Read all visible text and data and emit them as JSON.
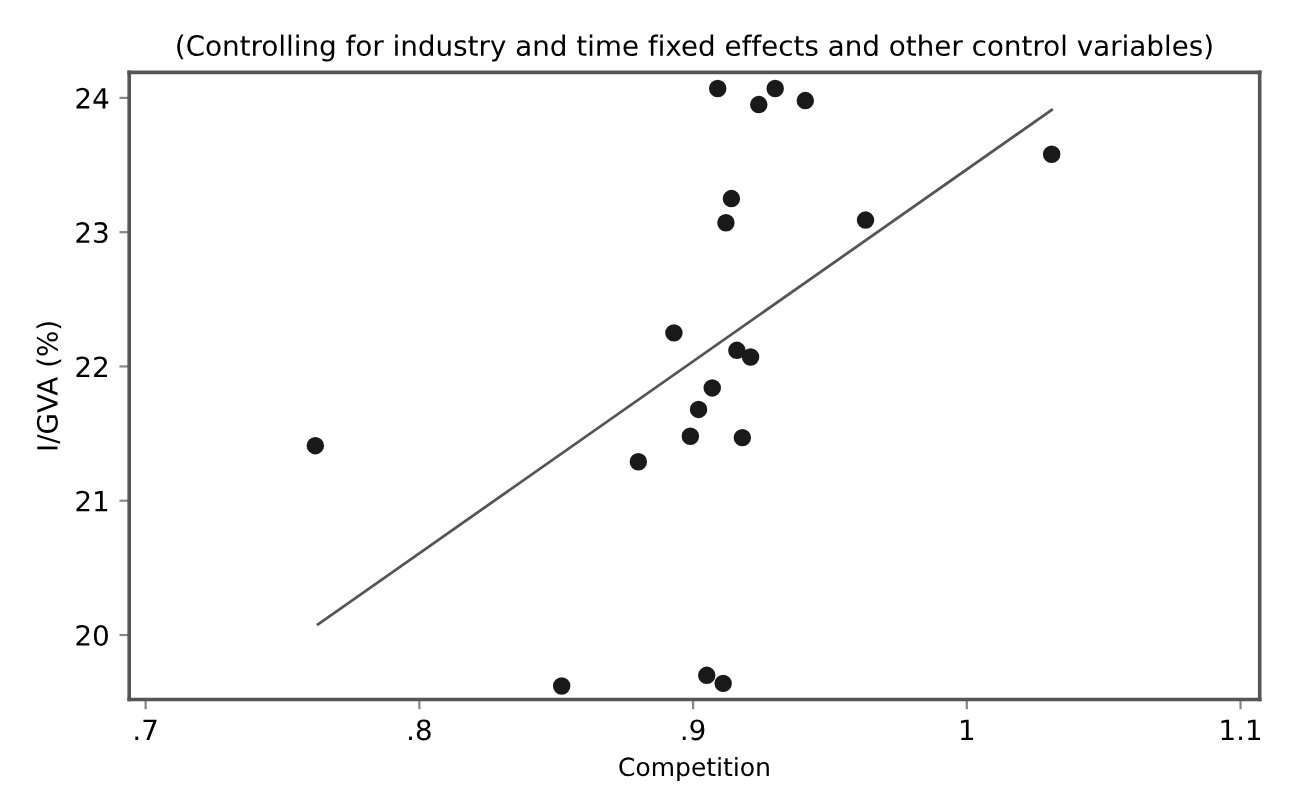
{
  "chart_data": {
    "type": "scatter",
    "title": "(Controlling for industry and time fixed effects and other control variables)",
    "xlabel": "Competition",
    "ylabel": "I/GVA (%)",
    "xlim": [
      0.694,
      1.107
    ],
    "ylim": [
      19.52,
      24.19
    ],
    "xticks": [
      {
        "value": 0.7,
        "label": ".7"
      },
      {
        "value": 0.8,
        "label": ".8"
      },
      {
        "value": 0.9,
        "label": ".9"
      },
      {
        "value": 1,
        "label": "1"
      },
      {
        "value": 1.1,
        "label": "1.1"
      }
    ],
    "yticks": [
      20,
      21,
      22,
      23,
      24
    ],
    "grid": false,
    "legend": false,
    "series": [
      {
        "color": "#1a1a1a",
        "marker": "circle",
        "x": [
          0.909,
          0.93,
          0.924,
          0.941,
          1.031,
          0.914,
          0.912,
          0.963,
          0.893,
          0.916,
          0.921,
          0.907,
          0.902,
          0.899,
          0.918,
          0.88,
          0.762,
          0.852,
          0.905,
          0.911
        ],
        "values": [
          24.07,
          24.07,
          23.95,
          23.98,
          23.58,
          23.25,
          23.07,
          23.09,
          22.25,
          22.12,
          22.07,
          21.84,
          21.68,
          21.48,
          21.47,
          21.29,
          21.41,
          19.62,
          19.7,
          19.64
        ]
      },
      {
        "type": "line",
        "color": "#555555",
        "marker": "none",
        "line_style": "solid",
        "x": [
          0.763,
          1.031
        ],
        "values": [
          20.08,
          23.91
        ]
      }
    ]
  }
}
